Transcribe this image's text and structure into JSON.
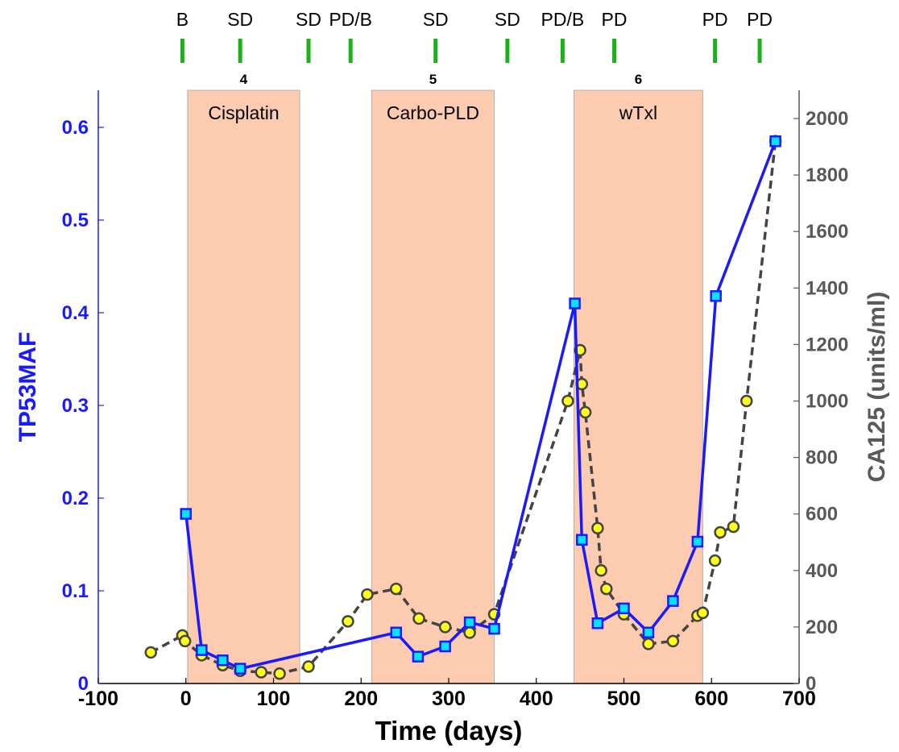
{
  "chart_data": {
    "type": "line",
    "xlabel": "Time (days)",
    "ylabel_left": "TP53MAF",
    "ylabel_right": "CA125 (units/ml)",
    "xlim": [
      -100,
      700
    ],
    "xticks": [
      -100,
      0,
      100,
      200,
      300,
      400,
      500,
      600,
      700
    ],
    "ylim_left": [
      0,
      0.64
    ],
    "yticks_left": [
      0,
      0.1,
      0.2,
      0.3,
      0.4,
      0.5,
      0.6
    ],
    "ytick_labels_left": [
      "0",
      "0.1",
      "0.2",
      "0.3",
      "0.4",
      "0.5",
      "0.6"
    ],
    "ylim_right": [
      0,
      2100
    ],
    "yticks_right": [
      0,
      200,
      400,
      600,
      800,
      1000,
      1200,
      1400,
      1600,
      1800,
      2000
    ],
    "grid": false,
    "treatments": [
      {
        "label": "Cisplatin",
        "line": "4",
        "start": 2,
        "end": 130
      },
      {
        "label": "Carbo-PLD",
        "line": "5",
        "start": 212,
        "end": 352
      },
      {
        "label": "wTxl",
        "line": "6",
        "start": 443,
        "end": 590
      }
    ],
    "evaluations": [
      {
        "label": "B",
        "x": -4
      },
      {
        "label": "SD",
        "x": 62
      },
      {
        "label": "SD",
        "x": 140
      },
      {
        "label": "PD/B",
        "x": 188
      },
      {
        "label": "SD",
        "x": 285
      },
      {
        "label": "SD",
        "x": 367
      },
      {
        "label": "PD/B",
        "x": 430
      },
      {
        "label": "PD",
        "x": 489
      },
      {
        "label": "PD",
        "x": 604
      },
      {
        "label": "PD",
        "x": 655
      }
    ],
    "series": [
      {
        "name": "TP53MAF",
        "axis": "left",
        "color": "#1a1aff",
        "marker_color": "#00e5ff",
        "x": [
          0,
          18,
          42,
          62,
          240,
          265,
          296,
          324,
          352,
          444,
          452,
          470,
          500,
          528,
          556,
          584,
          605,
          673
        ],
        "y": [
          0.183,
          0.036,
          0.025,
          0.016,
          0.055,
          0.029,
          0.04,
          0.066,
          0.059,
          0.41,
          0.155,
          0.065,
          0.081,
          0.055,
          0.089,
          0.153,
          0.418,
          0.585
        ]
      },
      {
        "name": "CA125",
        "axis": "right",
        "color": "#444444",
        "marker_color": "#ffff1a",
        "x": [
          -40,
          -4,
          -1,
          18,
          42,
          62,
          86,
          107,
          140,
          185,
          207,
          240,
          266,
          296,
          324,
          352,
          436,
          450,
          452,
          456,
          470,
          474,
          480,
          500,
          528,
          556,
          584,
          590,
          604,
          610,
          625,
          640,
          673
        ],
        "y": [
          110,
          170,
          150,
          100,
          65,
          45,
          40,
          35,
          60,
          220,
          315,
          335,
          230,
          200,
          180,
          245,
          1000,
          1180,
          1060,
          960,
          550,
          400,
          335,
          245,
          140,
          150,
          240,
          250,
          435,
          535,
          555,
          1000,
          1920
        ]
      }
    ]
  }
}
